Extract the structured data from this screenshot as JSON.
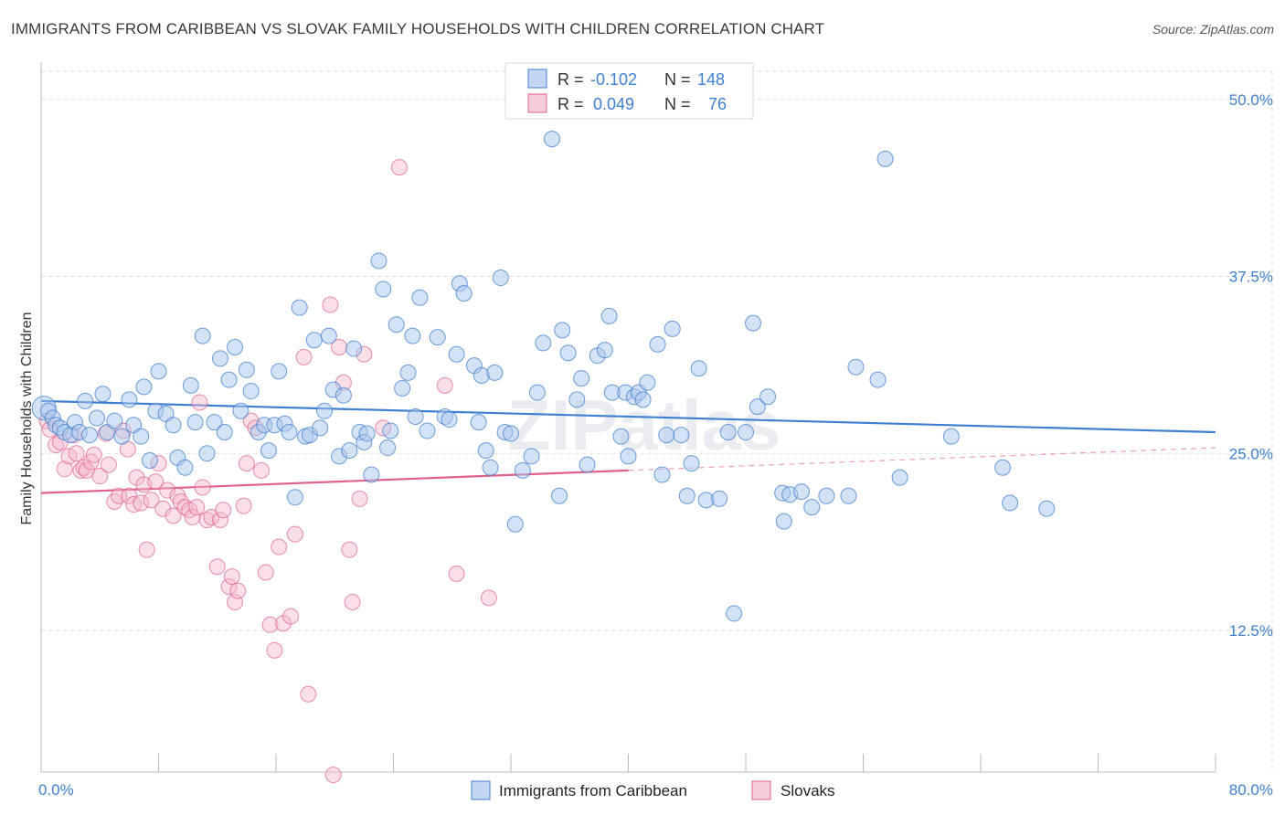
{
  "title": "IMMIGRANTS FROM CARIBBEAN VS SLOVAK FAMILY HOUSEHOLDS WITH CHILDREN CORRELATION CHART",
  "source": "Source: ZipAtlas.com",
  "watermark": "ZIPatlas",
  "colors": {
    "blue": "#3f7fd0",
    "blue_fill": "#a9c6ec",
    "pink": "#e0608e",
    "pink_fill": "#f3b7ca",
    "grid": "#dddddd"
  },
  "stats": [
    {
      "r_label": "R =",
      "r_value": "-0.102",
      "n_label": "N =",
      "n_value": "148"
    },
    {
      "r_label": "R =",
      "r_value": "0.049",
      "n_label": "N =",
      "n_value": "76"
    }
  ],
  "chart_data": {
    "type": "scatter",
    "title": "IMMIGRANTS FROM CARIBBEAN VS SLOVAK FAMILY HOUSEHOLDS WITH CHILDREN CORRELATION CHART",
    "xlabel": "",
    "ylabel": "Family Households with Children",
    "xlim": [
      0,
      80
    ],
    "ylim": [
      2.5,
      52.5
    ],
    "x_tick_labels": [
      "0.0%",
      "80.0%"
    ],
    "y_ticks": [
      12.5,
      25.0,
      37.5,
      50.0
    ],
    "y_tick_labels": [
      "12.5%",
      "25.0%",
      "37.5%",
      "50.0%"
    ],
    "grid": true,
    "legend_position": "bottom",
    "series": [
      {
        "name": "Immigrants from Caribbean",
        "color": "#3f7fd0",
        "trend": {
          "x": [
            0,
            80
          ],
          "y": [
            28.7,
            26.5
          ]
        },
        "points": [
          [
            0.2,
            28.2
          ],
          [
            0.5,
            28.0
          ],
          [
            0.8,
            27.5
          ],
          [
            1.0,
            27.0
          ],
          [
            1.3,
            26.8
          ],
          [
            1.6,
            26.5
          ],
          [
            2.0,
            26.3
          ],
          [
            2.3,
            27.2
          ],
          [
            2.6,
            26.5
          ],
          [
            3.0,
            28.7
          ],
          [
            3.3,
            26.3
          ],
          [
            3.8,
            27.5
          ],
          [
            4.2,
            29.2
          ],
          [
            4.5,
            26.5
          ],
          [
            5.0,
            27.3
          ],
          [
            5.5,
            26.2
          ],
          [
            6.0,
            28.8
          ],
          [
            6.3,
            27.0
          ],
          [
            6.8,
            26.2
          ],
          [
            7.0,
            29.7
          ],
          [
            7.4,
            24.5
          ],
          [
            7.8,
            28.0
          ],
          [
            8.0,
            30.8
          ],
          [
            8.5,
            27.8
          ],
          [
            9.0,
            27.0
          ],
          [
            9.3,
            24.7
          ],
          [
            9.8,
            24.0
          ],
          [
            10.2,
            29.8
          ],
          [
            10.5,
            27.2
          ],
          [
            11.0,
            33.3
          ],
          [
            11.3,
            25.0
          ],
          [
            11.8,
            27.2
          ],
          [
            12.2,
            31.7
          ],
          [
            12.5,
            26.5
          ],
          [
            12.8,
            30.2
          ],
          [
            13.2,
            32.5
          ],
          [
            13.6,
            28.0
          ],
          [
            14.0,
            30.9
          ],
          [
            14.3,
            29.4
          ],
          [
            14.8,
            26.5
          ],
          [
            15.2,
            27.0
          ],
          [
            15.5,
            25.2
          ],
          [
            15.9,
            27.0
          ],
          [
            16.2,
            30.8
          ],
          [
            16.6,
            27.1
          ],
          [
            16.9,
            26.5
          ],
          [
            17.3,
            21.9
          ],
          [
            17.6,
            35.3
          ],
          [
            18.0,
            26.2
          ],
          [
            18.3,
            26.3
          ],
          [
            18.6,
            33.0
          ],
          [
            19.0,
            26.8
          ],
          [
            19.3,
            28.0
          ],
          [
            19.6,
            33.3
          ],
          [
            19.9,
            29.5
          ],
          [
            20.3,
            24.8
          ],
          [
            20.6,
            29.1
          ],
          [
            21.0,
            25.2
          ],
          [
            21.3,
            32.4
          ],
          [
            21.7,
            26.5
          ],
          [
            22.0,
            25.8
          ],
          [
            22.2,
            26.4
          ],
          [
            22.5,
            23.5
          ],
          [
            23.0,
            38.6
          ],
          [
            23.3,
            36.6
          ],
          [
            23.6,
            25.4
          ],
          [
            23.8,
            26.6
          ],
          [
            24.2,
            34.1
          ],
          [
            24.6,
            29.6
          ],
          [
            25.0,
            30.7
          ],
          [
            25.3,
            33.3
          ],
          [
            25.5,
            27.6
          ],
          [
            25.8,
            36.0
          ],
          [
            26.3,
            26.6
          ],
          [
            27.0,
            33.2
          ],
          [
            27.5,
            27.6
          ],
          [
            27.8,
            27.4
          ],
          [
            28.3,
            32.0
          ],
          [
            28.5,
            37.0
          ],
          [
            28.8,
            36.3
          ],
          [
            29.5,
            31.2
          ],
          [
            29.8,
            27.2
          ],
          [
            30.0,
            30.5
          ],
          [
            30.3,
            25.2
          ],
          [
            30.6,
            24.0
          ],
          [
            30.9,
            30.7
          ],
          [
            31.3,
            37.4
          ],
          [
            31.6,
            26.5
          ],
          [
            32.0,
            26.4
          ],
          [
            32.3,
            20.0
          ],
          [
            32.8,
            23.8
          ],
          [
            33.4,
            24.8
          ],
          [
            33.8,
            29.3
          ],
          [
            34.2,
            32.8
          ],
          [
            34.8,
            47.2
          ],
          [
            35.3,
            22.0
          ],
          [
            35.5,
            33.7
          ],
          [
            35.9,
            32.1
          ],
          [
            36.5,
            28.8
          ],
          [
            36.8,
            30.3
          ],
          [
            37.2,
            24.2
          ],
          [
            37.9,
            31.9
          ],
          [
            38.4,
            32.3
          ],
          [
            38.7,
            34.7
          ],
          [
            38.9,
            29.3
          ],
          [
            39.5,
            26.2
          ],
          [
            39.8,
            29.3
          ],
          [
            40.0,
            24.8
          ],
          [
            40.4,
            29.0
          ],
          [
            40.7,
            29.3
          ],
          [
            41.0,
            28.8
          ],
          [
            41.3,
            30.0
          ],
          [
            42.0,
            32.7
          ],
          [
            42.3,
            23.5
          ],
          [
            42.6,
            26.3
          ],
          [
            43.0,
            33.8
          ],
          [
            43.6,
            26.3
          ],
          [
            44.0,
            22.0
          ],
          [
            44.3,
            24.3
          ],
          [
            44.8,
            31.0
          ],
          [
            45.3,
            21.7
          ],
          [
            46.2,
            21.8
          ],
          [
            46.8,
            26.5
          ],
          [
            47.2,
            13.7
          ],
          [
            48.0,
            26.5
          ],
          [
            48.5,
            34.2
          ],
          [
            48.8,
            28.3
          ],
          [
            49.5,
            29.0
          ],
          [
            50.5,
            22.2
          ],
          [
            50.6,
            20.2
          ],
          [
            51.0,
            22.1
          ],
          [
            51.8,
            22.3
          ],
          [
            52.5,
            21.2
          ],
          [
            53.5,
            22.0
          ],
          [
            55.0,
            22.0
          ],
          [
            55.5,
            31.1
          ],
          [
            57.0,
            30.2
          ],
          [
            57.5,
            45.8
          ],
          [
            58.5,
            23.3
          ],
          [
            62.0,
            26.2
          ],
          [
            65.5,
            24.0
          ],
          [
            66.0,
            21.5
          ],
          [
            68.5,
            21.1
          ]
        ]
      },
      {
        "name": "Slovaks",
        "color": "#e0608e",
        "trend": {
          "x": [
            0,
            40
          ],
          "y": [
            22.2,
            23.8
          ]
        },
        "trend_extension": {
          "x": [
            40,
            80
          ],
          "y": [
            23.8,
            25.4
          ]
        },
        "points": [
          [
            0.4,
            27.3
          ],
          [
            0.6,
            26.7
          ],
          [
            1.0,
            25.6
          ],
          [
            1.3,
            25.8
          ],
          [
            1.6,
            23.9
          ],
          [
            1.9,
            24.8
          ],
          [
            2.2,
            26.3
          ],
          [
            2.4,
            25.0
          ],
          [
            2.7,
            23.8
          ],
          [
            2.9,
            24.0
          ],
          [
            3.1,
            23.8
          ],
          [
            3.4,
            24.4
          ],
          [
            3.6,
            24.9
          ],
          [
            4.0,
            23.4
          ],
          [
            4.4,
            26.4
          ],
          [
            4.6,
            24.2
          ],
          [
            5.0,
            21.6
          ],
          [
            5.3,
            22.0
          ],
          [
            5.6,
            26.6
          ],
          [
            5.9,
            25.3
          ],
          [
            6.0,
            22.0
          ],
          [
            6.3,
            21.4
          ],
          [
            6.5,
            23.3
          ],
          [
            6.8,
            21.5
          ],
          [
            7.0,
            22.8
          ],
          [
            7.2,
            18.2
          ],
          [
            7.5,
            21.7
          ],
          [
            7.8,
            23.0
          ],
          [
            8.0,
            24.3
          ],
          [
            8.3,
            21.1
          ],
          [
            8.6,
            22.4
          ],
          [
            9.0,
            20.6
          ],
          [
            9.3,
            22.0
          ],
          [
            9.5,
            21.6
          ],
          [
            9.8,
            21.2
          ],
          [
            10.1,
            21.0
          ],
          [
            10.3,
            20.5
          ],
          [
            10.6,
            21.2
          ],
          [
            10.8,
            28.6
          ],
          [
            11.0,
            22.6
          ],
          [
            11.3,
            20.3
          ],
          [
            11.6,
            20.5
          ],
          [
            12.0,
            17.0
          ],
          [
            12.2,
            20.3
          ],
          [
            12.4,
            21.0
          ],
          [
            12.8,
            15.6
          ],
          [
            13.0,
            16.3
          ],
          [
            13.2,
            14.5
          ],
          [
            13.4,
            15.3
          ],
          [
            13.8,
            21.3
          ],
          [
            14.0,
            24.3
          ],
          [
            14.3,
            27.3
          ],
          [
            14.6,
            26.8
          ],
          [
            15.0,
            23.8
          ],
          [
            15.3,
            16.6
          ],
          [
            15.6,
            12.9
          ],
          [
            15.9,
            11.1
          ],
          [
            16.2,
            18.4
          ],
          [
            16.5,
            13.0
          ],
          [
            17.0,
            13.5
          ],
          [
            17.3,
            19.3
          ],
          [
            17.9,
            31.8
          ],
          [
            18.2,
            8.0
          ],
          [
            19.7,
            35.5
          ],
          [
            19.9,
            2.3
          ],
          [
            20.3,
            32.5
          ],
          [
            20.6,
            30.0
          ],
          [
            21.0,
            18.2
          ],
          [
            21.2,
            14.5
          ],
          [
            21.7,
            21.8
          ],
          [
            22.0,
            32.0
          ],
          [
            23.3,
            26.8
          ],
          [
            24.4,
            45.2
          ],
          [
            27.5,
            29.8
          ],
          [
            28.3,
            16.5
          ],
          [
            30.5,
            14.8
          ]
        ]
      }
    ]
  },
  "legend": {
    "blue_label": "Immigrants from Caribbean",
    "pink_label": "Slovaks"
  }
}
